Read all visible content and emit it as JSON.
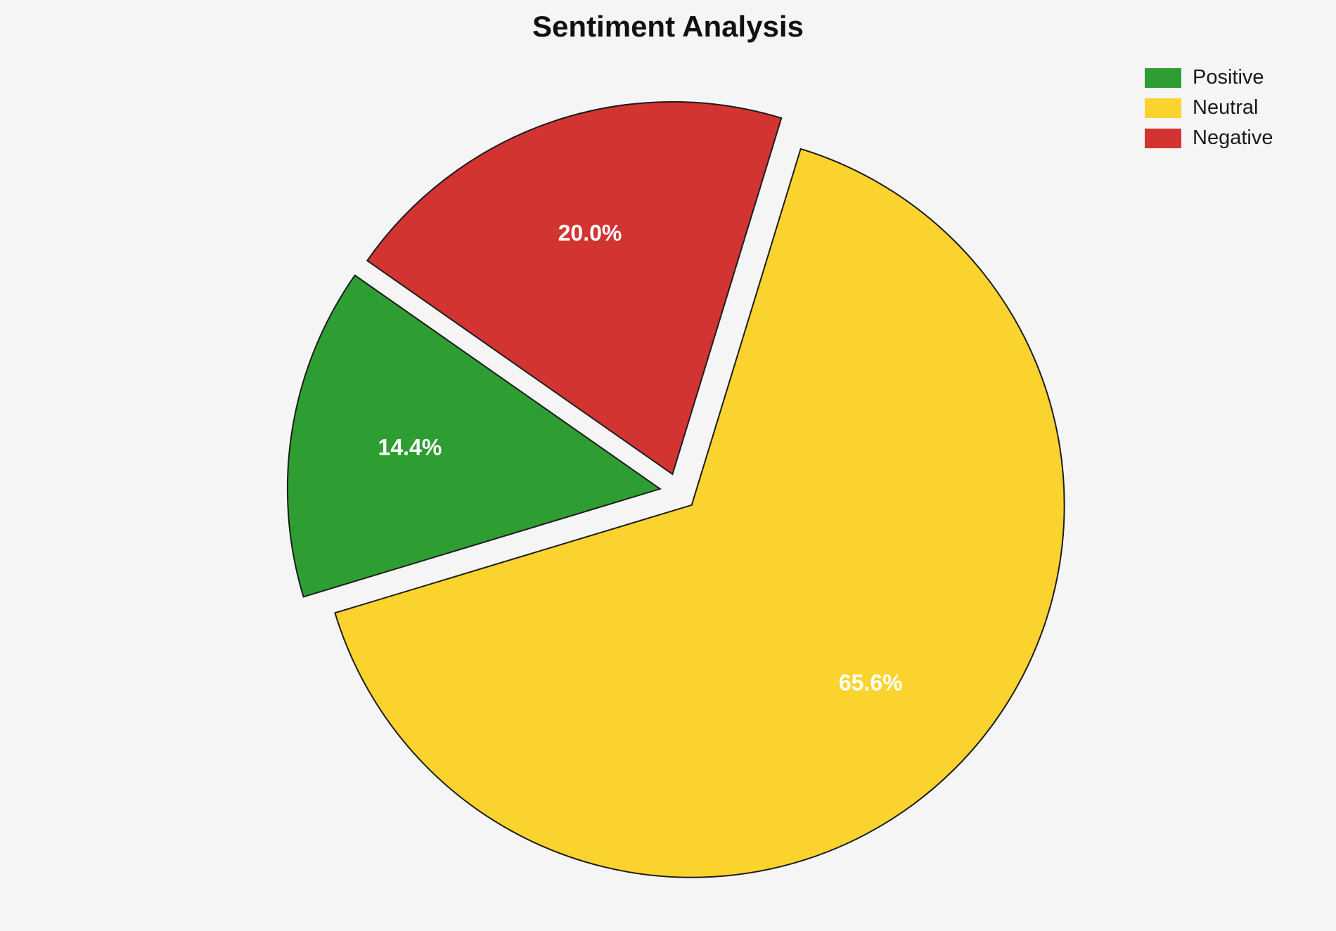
{
  "title": "Sentiment Analysis",
  "chart_data": {
    "type": "pie",
    "title": "Sentiment Analysis",
    "labels": [
      "Positive",
      "Neutral",
      "Negative"
    ],
    "values": [
      14.4,
      65.6,
      20.0
    ],
    "pct_labels": [
      "14.4%",
      "65.6%",
      "20.0%"
    ],
    "colors": [
      "#2e9e33",
      "#fbd32e",
      "#d23432"
    ],
    "edge_color": "#1c1c1c",
    "label_color": "#ffffff",
    "start_angle": 145,
    "counterclock": true,
    "explode": [
      0.05,
      0.05,
      0.05
    ],
    "legend_position": "upper right",
    "background": "#f5f5f5"
  }
}
